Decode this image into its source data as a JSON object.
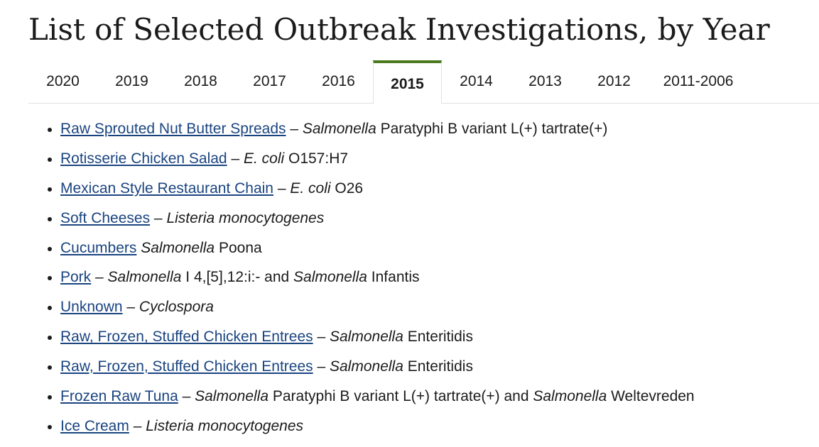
{
  "page": {
    "title": "List of Selected Outbreak Investigations, by Year"
  },
  "tabs": [
    {
      "label": "2020",
      "active": false
    },
    {
      "label": "2019",
      "active": false
    },
    {
      "label": "2018",
      "active": false
    },
    {
      "label": "2017",
      "active": false
    },
    {
      "label": "2016",
      "active": false
    },
    {
      "label": "2015",
      "active": true
    },
    {
      "label": "2014",
      "active": false
    },
    {
      "label": "2013",
      "active": false
    },
    {
      "label": "2012",
      "active": false
    },
    {
      "label": "2011-2006",
      "active": false
    }
  ],
  "colors": {
    "accent": "#4b7a1f",
    "link": "#1a4480",
    "text": "#1b1b1b",
    "divider": "#dfe1e2"
  },
  "outbreaks": [
    {
      "link": "Raw Sprouted Nut Butter Spreads",
      "sep": " – ",
      "organism": "Salmonella",
      "strain": " Paratyphi B variant L(+) tartrate(+)"
    },
    {
      "link": "Rotisserie Chicken Salad",
      "sep": " – ",
      "organism": "E. coli",
      "strain": " O157:H7"
    },
    {
      "link": "Mexican Style Restaurant Chain",
      "sep": " – ",
      "organism": "E. coli",
      "strain": " O26"
    },
    {
      "link": "Soft Cheeses",
      "sep": " – ",
      "organism": "Listeria monocytogenes"
    },
    {
      "link": "Cucumbers",
      "sep": " ",
      "organism": "Salmonella",
      "strain": " Poona"
    },
    {
      "link": "Pork",
      "sep": " – ",
      "organism": "Salmonella",
      "strain": " I 4,[5],12:i:- and ",
      "organism2": "Salmonella",
      "strain2": " Infantis"
    },
    {
      "link": "Unknown",
      "sep": " – ",
      "organism": "Cyclospora"
    },
    {
      "link": "Raw, Frozen, Stuffed Chicken Entrees",
      "sep": " – ",
      "organism": "Salmonella",
      "strain": " Enteritidis"
    },
    {
      "link": "Raw, Frozen, Stuffed Chicken Entrees",
      "sep": " – ",
      "organism": "Salmonella",
      "strain": " Enteritidis"
    },
    {
      "link": "Frozen Raw Tuna",
      "sep": " – ",
      "organism": "Salmonella",
      "strain": " Paratyphi B variant L(+) tartrate(+) and ",
      "organism2": "Salmonella",
      "strain2": " Weltevreden"
    },
    {
      "link": "Ice Cream",
      "sep": " – ",
      "organism": "Listeria monocytogenes"
    }
  ]
}
